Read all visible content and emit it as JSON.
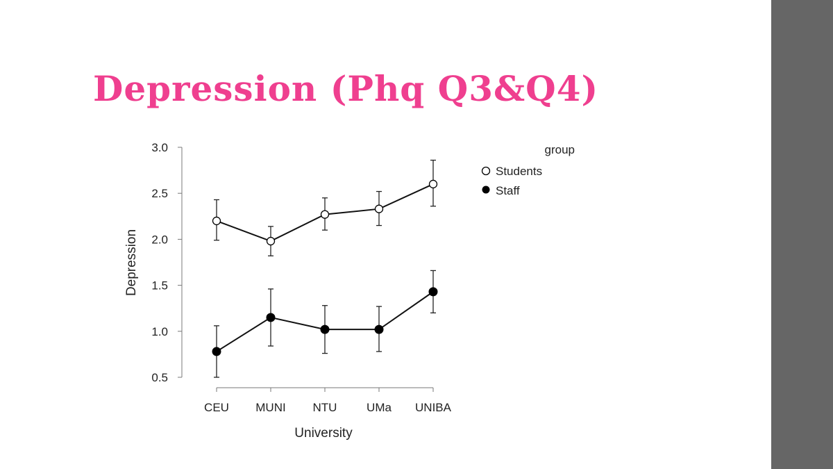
{
  "slide": {
    "title": "Depression (Phq Q3&Q4)",
    "title_color": "#ef3f8f",
    "side_bar_color": "#666666"
  },
  "chart_data": {
    "type": "line",
    "title": "",
    "xlabel": "University",
    "ylabel": "Depression",
    "categories": [
      "CEU",
      "MUNI",
      "NTU",
      "UMa",
      "UNIBA"
    ],
    "ylim": [
      0.5,
      3.0
    ],
    "yticks": [
      0.5,
      1.0,
      1.5,
      2.0,
      2.5,
      3.0
    ],
    "ytick_labels": [
      "0.5",
      "1.0",
      "1.5",
      "2.0",
      "2.5",
      "3.0"
    ],
    "legend_title": "group",
    "legend_position": "top-right",
    "series": [
      {
        "name": "Students",
        "marker": "open-circle",
        "values": [
          2.2,
          1.98,
          2.27,
          2.33,
          2.6
        ],
        "err_low": [
          1.99,
          1.82,
          2.1,
          2.15,
          2.36
        ],
        "err_high": [
          2.43,
          2.14,
          2.45,
          2.52,
          2.86
        ]
      },
      {
        "name": "Staff",
        "marker": "filled-circle",
        "values": [
          0.78,
          1.15,
          1.02,
          1.02,
          1.43
        ],
        "err_low": [
          0.5,
          0.84,
          0.76,
          0.78,
          1.2
        ],
        "err_high": [
          1.06,
          1.46,
          1.28,
          1.27,
          1.66
        ]
      }
    ]
  }
}
